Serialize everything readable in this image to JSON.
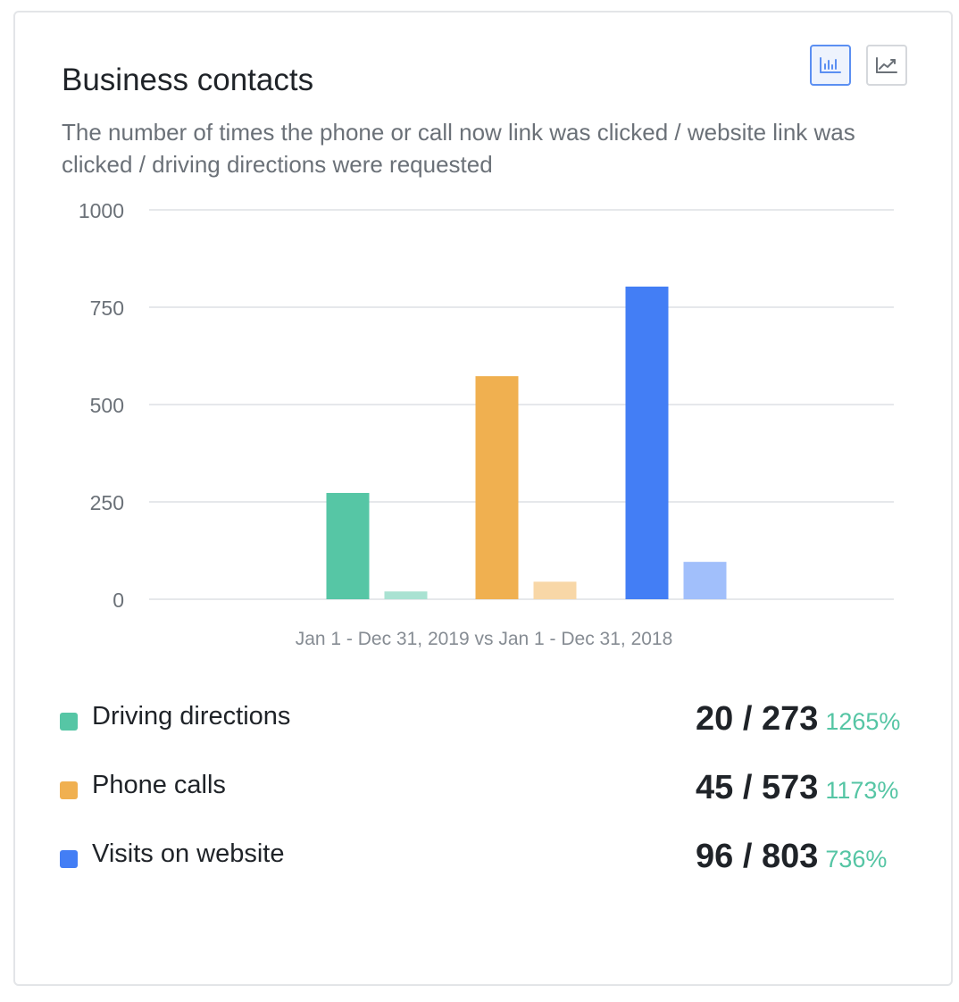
{
  "card": {
    "title": "Business contacts",
    "subtitle": "The number of times the phone or call now link was clicked / website link was clicked / driving directions were requested",
    "toggles": [
      {
        "icon": "bar-chart-icon",
        "active": true
      },
      {
        "icon": "line-chart-icon",
        "active": false
      }
    ]
  },
  "chart_data": {
    "type": "bar",
    "xlabel": "Jan 1 - Dec 31, 2019 vs Jan 1 - Dec 31, 2018",
    "ylabel": "",
    "ylim": [
      0,
      1000
    ],
    "yticks": [
      "1000",
      "750",
      "500",
      "250",
      "0"
    ],
    "grid": true,
    "categories": [
      "Driving directions",
      "Phone calls",
      "Visits on website"
    ],
    "series": [
      {
        "values": [
          273,
          573,
          803
        ]
      },
      {
        "values": [
          20,
          45,
          96
        ]
      }
    ],
    "colors_current": [
      "#56c6a5",
      "#f0b050",
      "#437ef5"
    ],
    "colors_previous": [
      "#a9e2d2",
      "#f8d7a7",
      "#a1bffb"
    ]
  },
  "legend": [
    {
      "label": "Driving directions",
      "value": "20 / 273",
      "change": "1265%",
      "color": "#56c6a5"
    },
    {
      "label": "Phone calls",
      "value": "45 / 573",
      "change": "1173%",
      "color": "#f0b050"
    },
    {
      "label": "Visits on website",
      "value": "96 / 803",
      "change": "736%",
      "color": "#437ef5"
    }
  ],
  "colors": {
    "positive_change": "#55c5a4",
    "grid": "#e6e8eb",
    "axis_text": "#6b7178"
  }
}
